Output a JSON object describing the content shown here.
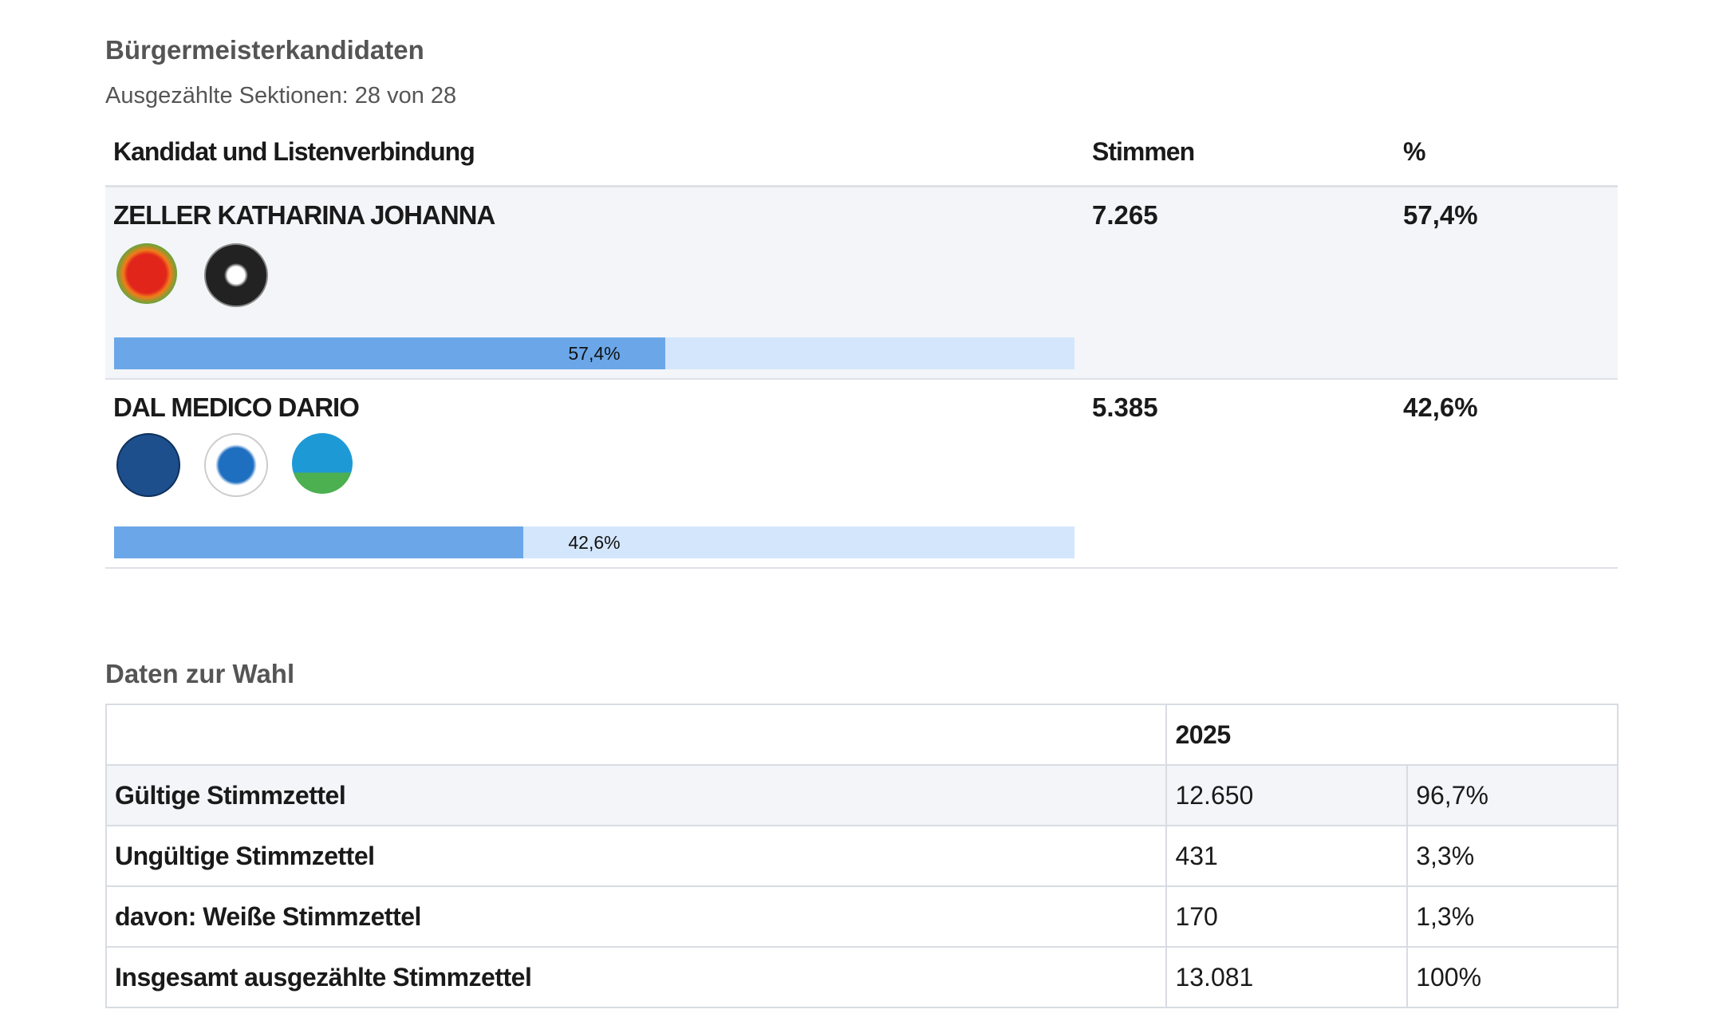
{
  "header": {
    "title": "Bürgermeisterkandidaten",
    "subtitle": "Ausgezählte Sektionen: 28 von 28"
  },
  "results": {
    "columns": [
      "Kandidat und Listenverbindung",
      "Stimmen",
      "%"
    ],
    "candidates": [
      {
        "name": "ZELLER KATHARINA JOHANNA",
        "votes": "7.265",
        "percent": 57.4,
        "percent_label": "57,4%"
      },
      {
        "name": "DAL MEDICO DARIO",
        "votes": "5.385",
        "percent": 42.6,
        "percent_label": "42,6%"
      }
    ]
  },
  "election_data": {
    "title": "Daten zur Wahl",
    "year": "2025",
    "rows": [
      [
        "Gültige Stimmzettel",
        "12.650",
        "96,7%"
      ],
      [
        "Ungültige Stimmzettel",
        "431",
        "3,3%"
      ],
      [
        "davon: Weiße Stimmzettel",
        "170",
        "1,3%"
      ],
      [
        "Insgesamt ausgezählte Stimmzettel",
        "13.081",
        "100%"
      ]
    ]
  }
}
